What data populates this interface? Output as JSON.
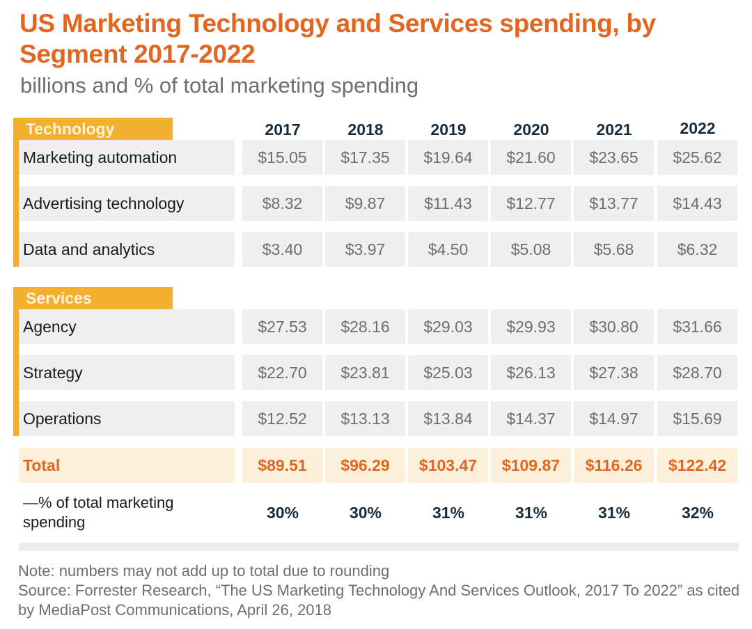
{
  "title": "US Marketing Technology and Services spending, by Segment 2017-2022",
  "subtitle": "billions and % of total marketing spending",
  "colors": {
    "accent_orange": "#e2661f",
    "segment_yellow": "#f3b02e",
    "total_row_bg": "#fdf0da",
    "cell_bg": "#efefef",
    "year_text": "#172c3d"
  },
  "chart_data": {
    "type": "table",
    "title": "US Marketing Technology and Services spending, by Segment 2017-2022",
    "subtitle": "billions and % of total marketing spending",
    "columns": [
      "2017",
      "2018",
      "2019",
      "2020",
      "2021",
      "2022"
    ],
    "segments": [
      {
        "name": "Technology",
        "rows": [
          {
            "label": "Marketing automation",
            "values": [
              "$15.05",
              "$17.35",
              "$19.64",
              "$21.60",
              "$23.65",
              "$25.62"
            ]
          },
          {
            "label": "Advertising technology",
            "values": [
              "$8.32",
              "$9.87",
              "$11.43",
              "$12.77",
              "$13.77",
              "$14.43"
            ]
          },
          {
            "label": "Data and analytics",
            "values": [
              "$3.40",
              "$3.97",
              "$4.50",
              "$5.08",
              "$5.68",
              "$6.32"
            ]
          }
        ]
      },
      {
        "name": "Services",
        "rows": [
          {
            "label": "Agency",
            "values": [
              "$27.53",
              "$28.16",
              "$29.03",
              "$29.93",
              "$30.80",
              "$31.66"
            ]
          },
          {
            "label": "Strategy",
            "values": [
              "$22.70",
              "$23.81",
              "$25.03",
              "$26.13",
              "$27.38",
              "$28.70"
            ]
          },
          {
            "label": "Operations",
            "values": [
              "$12.52",
              "$13.13",
              "$13.84",
              "$14.37",
              "$14.97",
              "$15.69"
            ]
          }
        ]
      }
    ],
    "total": {
      "label": "Total",
      "values": [
        "$89.51",
        "$96.29",
        "$103.47",
        "$109.87",
        "$116.26",
        "$122.42"
      ]
    },
    "percent_of_total": {
      "label": "—% of total marketing spending",
      "values": [
        "30%",
        "30%",
        "31%",
        "31%",
        "31%",
        "32%"
      ]
    }
  },
  "notes": {
    "note": "Note: numbers may not add up to total due to rounding",
    "source": "Source: Forrester Research, “The US Marketing Technology And Services Outlook, 2017 To 2022” as cited by MediaPost Communications, April 26, 2018"
  }
}
